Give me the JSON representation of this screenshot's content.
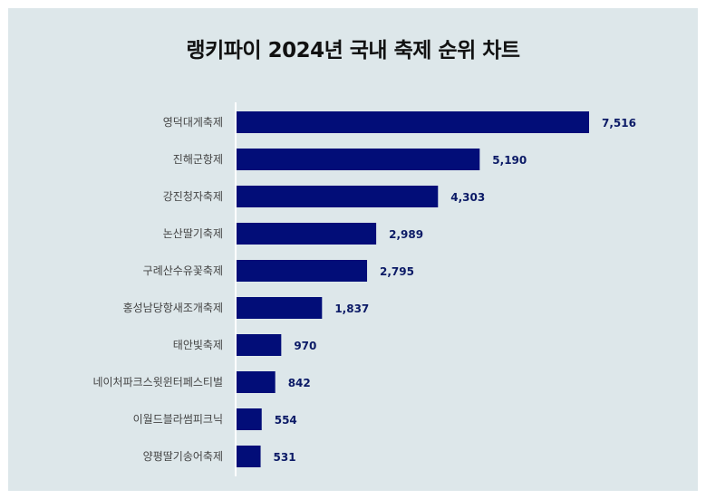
{
  "chart_data": {
    "type": "bar",
    "orientation": "horizontal",
    "title": "랭키파이 2024년 국내 축제 순위 차트",
    "categories": [
      "영덕대게축제",
      "진해군항제",
      "강진청자축제",
      "논산딸기축제",
      "구례산수유꽃축제",
      "홍성남당항새조개축제",
      "태안빛축제",
      "네이처파크스윗윈터페스티벌",
      "이월드블라썸피크닉",
      "양평딸기송어축제"
    ],
    "values": [
      7516,
      5190,
      4303,
      2989,
      2795,
      1837,
      970,
      842,
      554,
      531
    ],
    "value_labels": [
      "7,516",
      "5,190",
      "4,303",
      "2,989",
      "2,795",
      "1,837",
      "970",
      "842",
      "554",
      "531"
    ],
    "bar_color": "#020d78",
    "background_color": "#dde7ea",
    "grid": false
  }
}
